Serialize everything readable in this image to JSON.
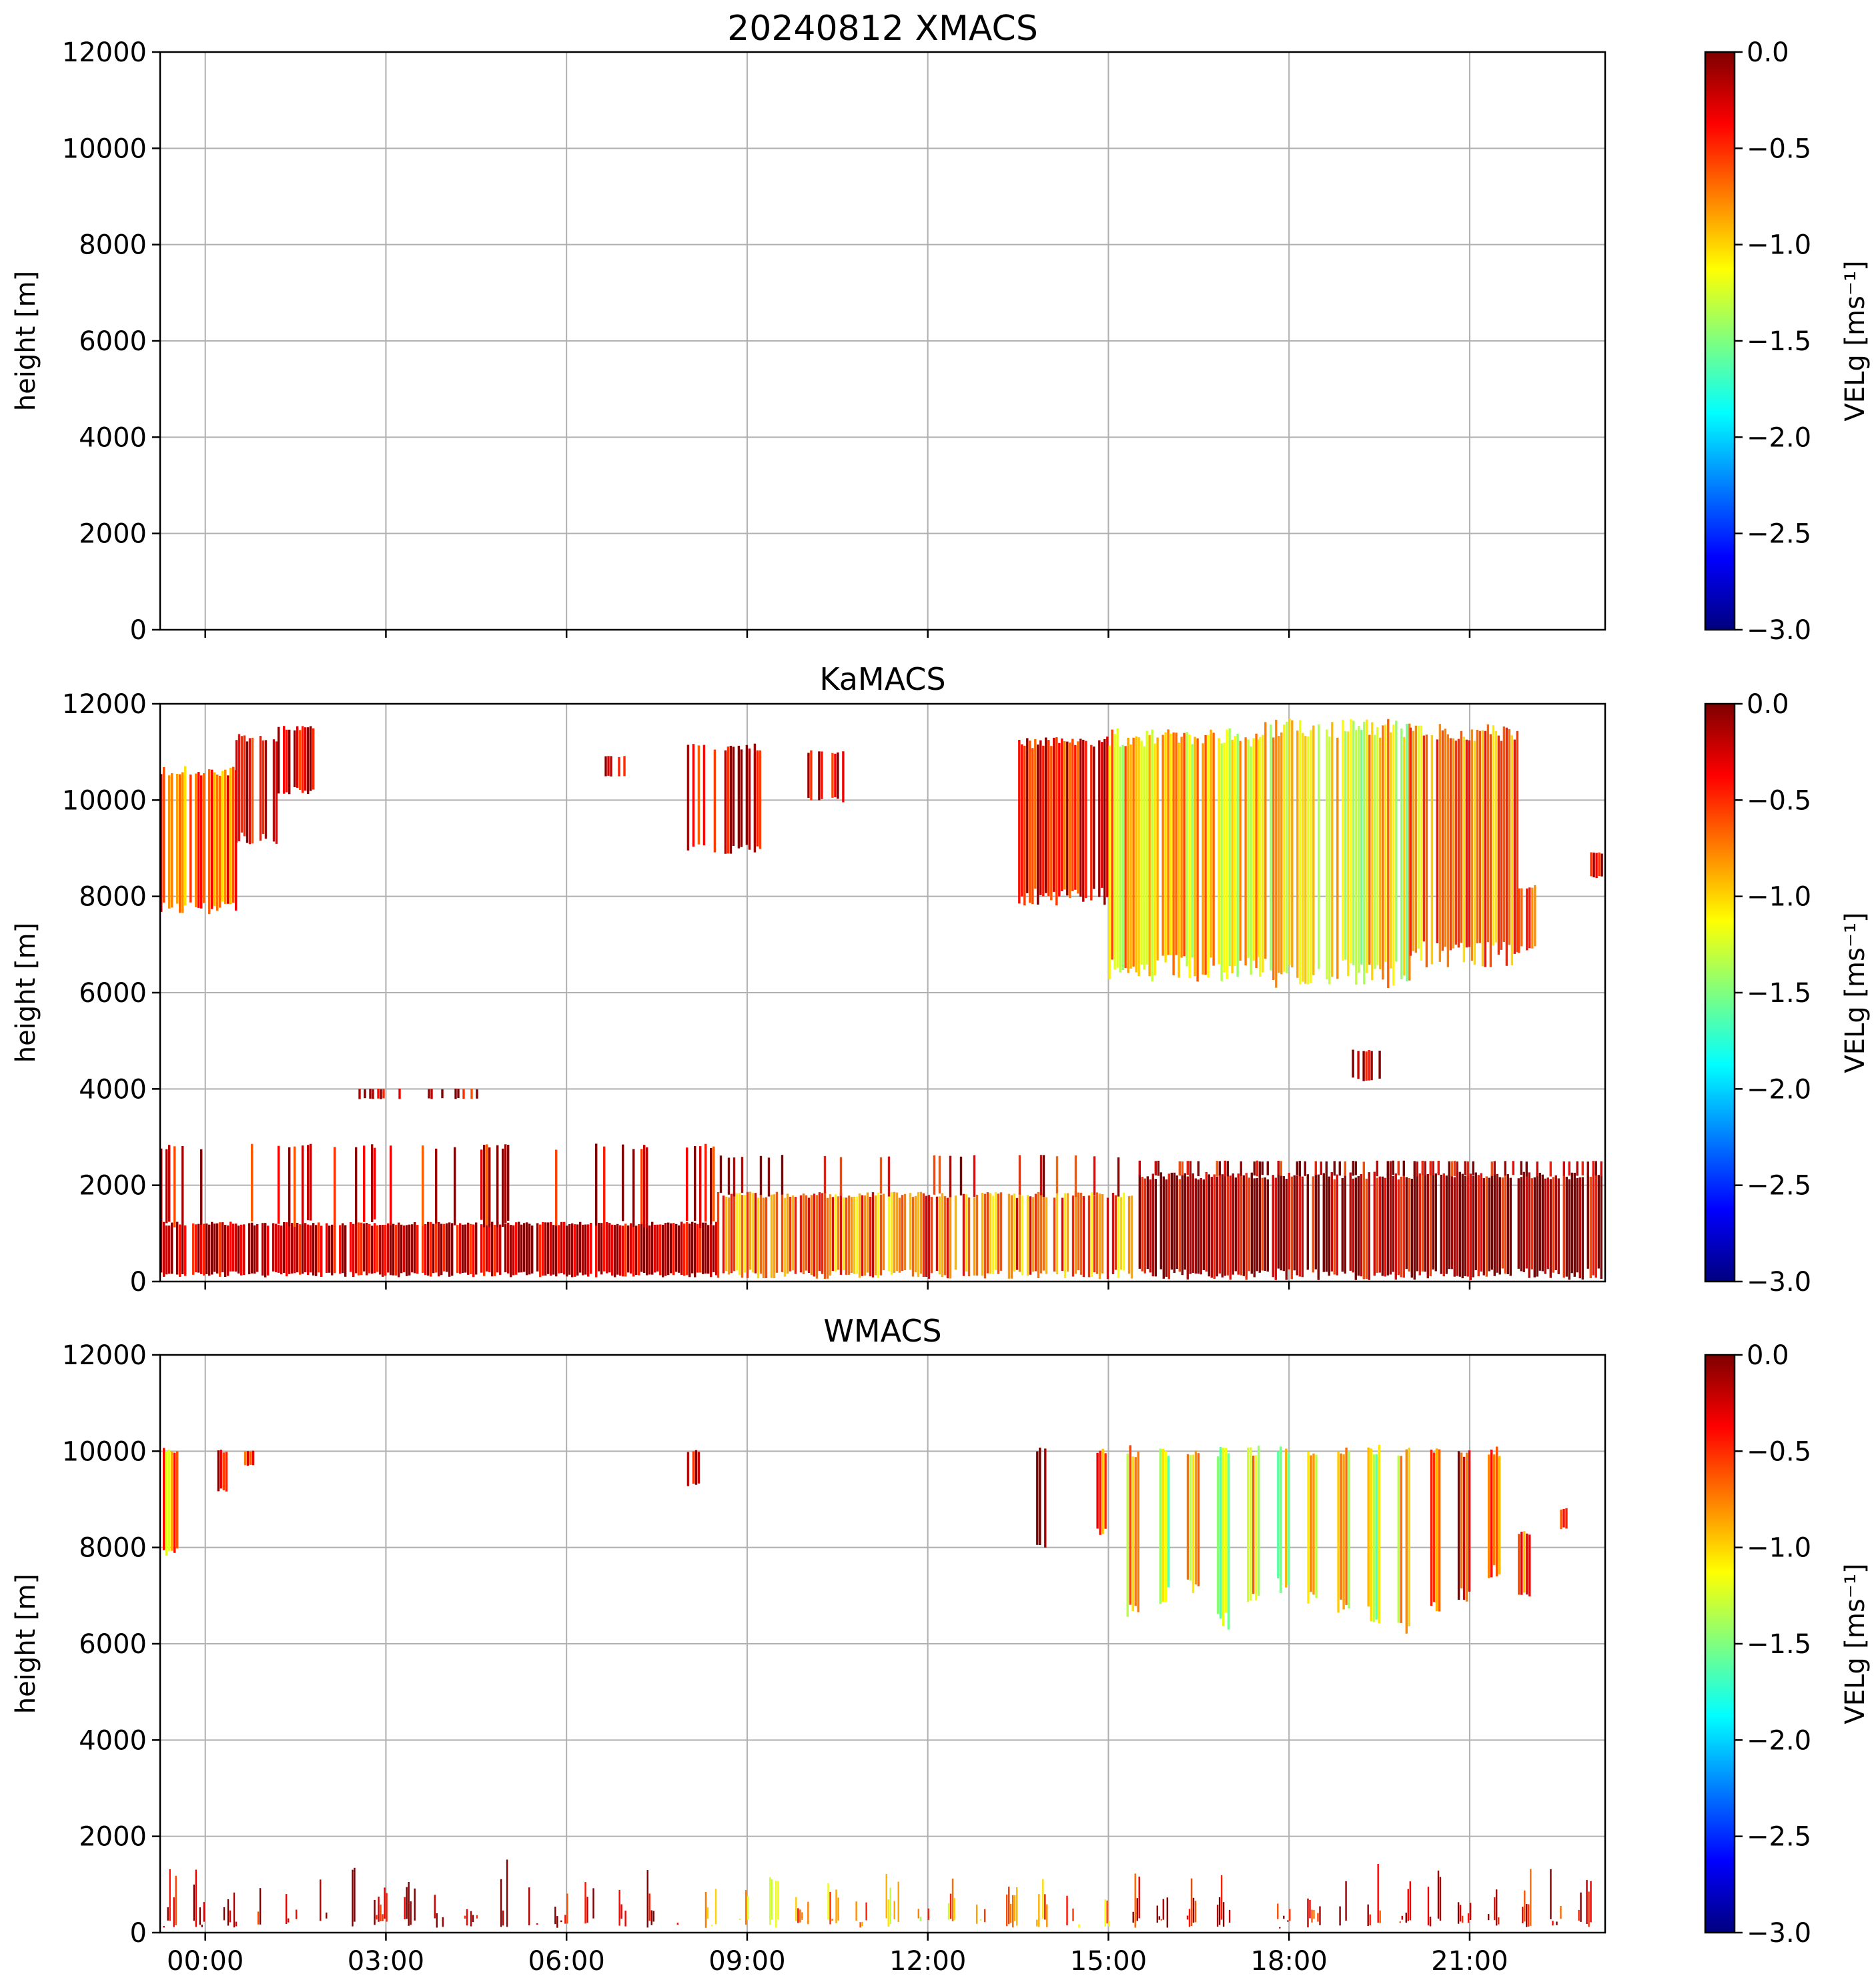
{
  "figure_title": "20240812 XMACS",
  "colors": {
    "jet": [
      "#00007f",
      "#0000ff",
      "#007fff",
      "#00ffff",
      "#7fff7f",
      "#ffff00",
      "#ff7f00",
      "#ff0000",
      "#7f0000"
    ],
    "grid": "#b0b0b0",
    "axis": "#000000"
  },
  "chart_data": [
    {
      "type": "heatmap",
      "title": "20240812 XMACS",
      "xlabel": "",
      "ylabel": "height [m]",
      "xlim_hours": [
        -0.75,
        23.25
      ],
      "ylim": [
        0,
        12000
      ],
      "yticks": [
        0,
        2000,
        4000,
        6000,
        8000,
        10000,
        12000
      ],
      "xtick_hours": [
        0,
        3,
        6,
        9,
        12,
        15,
        18,
        21
      ],
      "xtick_labels": [
        "00:00",
        "03:00",
        "06:00",
        "09:00",
        "12:00",
        "15:00",
        "18:00",
        "21:00"
      ],
      "show_xtick_labels": false,
      "grid": true,
      "colorbar": {
        "label": "VELg [ms⁻¹]",
        "range": [
          -3.0,
          0.0
        ],
        "ticks": [
          "0.0",
          "−0.5",
          "−1.0",
          "−1.5",
          "−2.0",
          "−2.5",
          "−3.0"
        ]
      },
      "echo_regions": []
    },
    {
      "type": "heatmap",
      "title": "KaMACS",
      "xlabel": "",
      "ylabel": "height [m]",
      "xlim_hours": [
        -0.75,
        23.25
      ],
      "ylim": [
        0,
        12000
      ],
      "yticks": [
        0,
        2000,
        4000,
        6000,
        8000,
        10000,
        12000
      ],
      "xtick_hours": [
        0,
        3,
        6,
        9,
        12,
        15,
        18,
        21
      ],
      "xtick_labels": [
        "00:00",
        "03:00",
        "06:00",
        "09:00",
        "12:00",
        "15:00",
        "18:00",
        "21:00"
      ],
      "show_xtick_labels": false,
      "grid": true,
      "colorbar": {
        "label": "VELg [ms⁻¹]",
        "range": [
          -3.0,
          0.0
        ],
        "ticks": [
          "0.0",
          "−0.5",
          "−1.0",
          "−1.5",
          "−2.0",
          "−2.5",
          "−3.0"
        ]
      },
      "echo_regions": [
        {
          "t0": -0.75,
          "t1": 0.5,
          "bottom": 7800,
          "top": 10600,
          "vel": -0.6,
          "density": 0.85
        },
        {
          "t0": 0.5,
          "t1": 1.2,
          "bottom": 9200,
          "top": 11300,
          "vel": -0.2,
          "density": 0.8
        },
        {
          "t0": 1.2,
          "t1": 1.8,
          "bottom": 10200,
          "top": 11500,
          "vel": -0.2,
          "density": 0.7
        },
        {
          "t0": 6.5,
          "t1": 7.0,
          "bottom": 10500,
          "top": 10900,
          "vel": -0.2,
          "density": 0.5
        },
        {
          "t0": 8.0,
          "t1": 9.2,
          "bottom": 9000,
          "top": 11100,
          "vel": -0.2,
          "density": 0.6
        },
        {
          "t0": 10.0,
          "t1": 10.6,
          "bottom": 10000,
          "top": 11000,
          "vel": -0.2,
          "density": 0.5
        },
        {
          "t0": 13.5,
          "t1": 15.0,
          "bottom": 8000,
          "top": 11200,
          "vel": -0.3,
          "density": 0.85
        },
        {
          "t0": 15.0,
          "t1": 17.5,
          "bottom": 6500,
          "top": 11300,
          "vel": -1.0,
          "density": 0.9
        },
        {
          "t0": 17.5,
          "t1": 20.0,
          "bottom": 6400,
          "top": 11500,
          "vel": -1.1,
          "density": 0.9
        },
        {
          "t0": 20.0,
          "t1": 21.8,
          "bottom": 6800,
          "top": 11400,
          "vel": -0.8,
          "density": 0.85
        },
        {
          "t0": 21.8,
          "t1": 22.1,
          "bottom": 6900,
          "top": 8200,
          "vel": -0.4,
          "density": 0.8
        },
        {
          "t0": 23.0,
          "t1": 23.25,
          "bottom": 8400,
          "top": 8900,
          "vel": -0.3,
          "density": 0.6
        },
        {
          "t0": 19.0,
          "t1": 19.5,
          "bottom": 4200,
          "top": 4800,
          "vel": -0.2,
          "density": 0.6
        },
        {
          "t0": 2.5,
          "t1": 4.5,
          "bottom": 3800,
          "top": 4000,
          "vel": -0.2,
          "density": 0.35
        },
        {
          "t0": -0.75,
          "t1": 8.5,
          "bottom": 150,
          "top": 1200,
          "vel": -0.1,
          "density": 0.9
        },
        {
          "t0": -0.75,
          "t1": 8.5,
          "bottom": 1200,
          "top": 2800,
          "vel": -0.2,
          "density": 0.18
        },
        {
          "t0": 8.5,
          "t1": 15.5,
          "bottom": 150,
          "top": 1800,
          "vel": -0.7,
          "density": 0.85
        },
        {
          "t0": 8.5,
          "t1": 15.5,
          "bottom": 1800,
          "top": 2600,
          "vel": -0.3,
          "density": 0.2
        },
        {
          "t0": 15.5,
          "t1": 23.25,
          "bottom": 150,
          "top": 2200,
          "vel": -0.15,
          "density": 0.9
        },
        {
          "t0": 15.5,
          "t1": 23.25,
          "bottom": 2200,
          "top": 2500,
          "vel": -0.2,
          "density": 0.4
        }
      ]
    },
    {
      "type": "heatmap",
      "title": "WMACS",
      "xlabel": "",
      "ylabel": "height [m]",
      "xlim_hours": [
        -0.75,
        23.25
      ],
      "ylim": [
        0,
        12000
      ],
      "yticks": [
        0,
        2000,
        4000,
        6000,
        8000,
        10000,
        12000
      ],
      "xtick_hours": [
        0,
        3,
        6,
        9,
        12,
        15,
        18,
        21
      ],
      "xtick_labels": [
        "00:00",
        "03:00",
        "06:00",
        "09:00",
        "12:00",
        "15:00",
        "18:00",
        "21:00"
      ],
      "show_xtick_labels": true,
      "grid": true,
      "colorbar": {
        "label": "VELg [ms⁻¹]",
        "range": [
          -3.0,
          0.0
        ],
        "ticks": [
          "0.0",
          "−0.5",
          "−1.0",
          "−1.5",
          "−2.0",
          "−2.5",
          "−3.0"
        ]
      },
      "echo_regions": [
        {
          "t0": -0.75,
          "t1": -0.45,
          "bottom": 7900,
          "top": 10000,
          "vel": -0.8,
          "density": 0.9
        },
        {
          "t0": 0.2,
          "t1": 0.4,
          "bottom": 9200,
          "top": 10000,
          "vel": -0.4,
          "density": 0.8
        },
        {
          "t0": 0.6,
          "t1": 0.8,
          "bottom": 9700,
          "top": 10000,
          "vel": -0.3,
          "density": 0.6
        },
        {
          "t0": 8.0,
          "t1": 8.2,
          "bottom": 9300,
          "top": 10000,
          "vel": -0.2,
          "density": 0.8
        },
        {
          "t0": 13.8,
          "t1": 14.0,
          "bottom": 8000,
          "top": 10000,
          "vel": -0.2,
          "density": 0.9
        },
        {
          "t0": 14.8,
          "t1": 15.0,
          "bottom": 8300,
          "top": 10000,
          "vel": -0.6,
          "density": 0.9
        },
        {
          "t0": 15.3,
          "t1": 15.5,
          "bottom": 6700,
          "top": 10000,
          "vel": -0.9,
          "density": 0.95
        },
        {
          "t0": 15.8,
          "t1": 16.0,
          "bottom": 7000,
          "top": 10000,
          "vel": -1.2,
          "density": 0.95
        },
        {
          "t0": 16.3,
          "t1": 16.5,
          "bottom": 7200,
          "top": 10000,
          "vel": -1.1,
          "density": 0.95
        },
        {
          "t0": 16.8,
          "t1": 17.0,
          "bottom": 6500,
          "top": 10000,
          "vel": -1.3,
          "density": 0.95
        },
        {
          "t0": 17.3,
          "t1": 17.5,
          "bottom": 7000,
          "top": 10000,
          "vel": -1.0,
          "density": 0.95
        },
        {
          "t0": 17.8,
          "t1": 18.0,
          "bottom": 7200,
          "top": 10000,
          "vel": -1.2,
          "density": 0.95
        },
        {
          "t0": 18.3,
          "t1": 18.5,
          "bottom": 7000,
          "top": 10000,
          "vel": -1.1,
          "density": 0.95
        },
        {
          "t0": 18.8,
          "t1": 19.0,
          "bottom": 6800,
          "top": 10000,
          "vel": -1.0,
          "density": 0.95
        },
        {
          "t0": 19.3,
          "t1": 19.5,
          "bottom": 6600,
          "top": 10000,
          "vel": -1.2,
          "density": 0.95
        },
        {
          "t0": 19.8,
          "t1": 20.0,
          "bottom": 6400,
          "top": 10000,
          "vel": -0.9,
          "density": 0.95
        },
        {
          "t0": 20.3,
          "t1": 20.5,
          "bottom": 6700,
          "top": 10000,
          "vel": -0.7,
          "density": 0.95
        },
        {
          "t0": 20.8,
          "t1": 21.0,
          "bottom": 7000,
          "top": 10000,
          "vel": -0.3,
          "density": 0.95
        },
        {
          "t0": 21.3,
          "t1": 21.5,
          "bottom": 7500,
          "top": 10000,
          "vel": -0.6,
          "density": 0.9
        },
        {
          "t0": 21.8,
          "t1": 22.0,
          "bottom": 7000,
          "top": 8300,
          "vel": -0.5,
          "density": 0.9
        },
        {
          "t0": 22.5,
          "t1": 22.6,
          "bottom": 8400,
          "top": 8800,
          "vel": -0.4,
          "density": 0.7
        }
      ],
      "low_columns": {
        "t_start": -0.7,
        "t_end": 23.0,
        "step": 0.5,
        "width": 0.2,
        "bottom": 100,
        "top_min": 700,
        "top_max": 1600,
        "density": 0.55,
        "vel_by_window": [
          {
            "t0": -0.75,
            "t1": 8.3,
            "vel": -0.15
          },
          {
            "t0": 8.3,
            "t1": 15.3,
            "vel": -0.9
          },
          {
            "t0": 15.3,
            "t1": 23.25,
            "vel": -0.25
          }
        ]
      }
    }
  ]
}
